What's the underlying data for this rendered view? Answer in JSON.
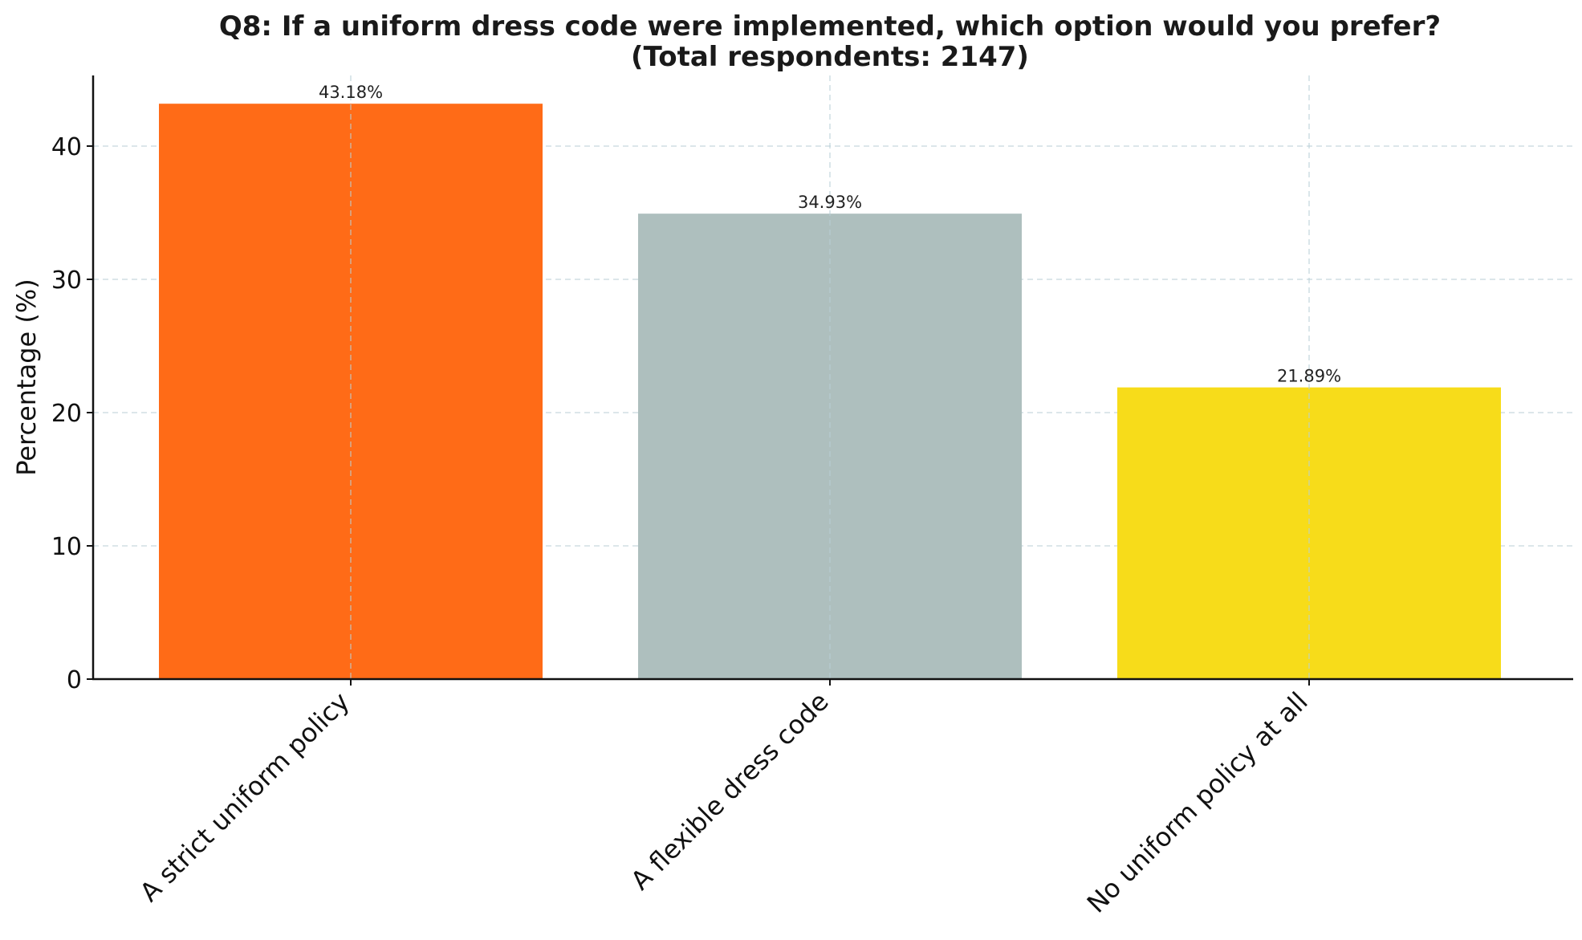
{
  "chart_data": {
    "type": "bar",
    "title": [
      "Q8: If a uniform dress code were implemented, which option would you prefer?",
      "(Total respondents: 2147)"
    ],
    "xlabel": "",
    "ylabel": "Percentage (%)",
    "categories": [
      "A strict uniform policy",
      "A flexible dress code",
      "No uniform policy at all"
    ],
    "values": [
      43.18,
      34.93,
      21.89
    ],
    "value_labels": [
      "43.18%",
      "34.93%",
      "21.89%"
    ],
    "colors": [
      "#ff6b17",
      "#aebfbe",
      "#f7dc1a"
    ],
    "ylim": [
      0,
      45.3
    ],
    "yticks": [
      0,
      10,
      20,
      30,
      40
    ],
    "ytick_labels": [
      "0",
      "10",
      "20",
      "30",
      "40"
    ],
    "grid": true,
    "legend": "none"
  }
}
